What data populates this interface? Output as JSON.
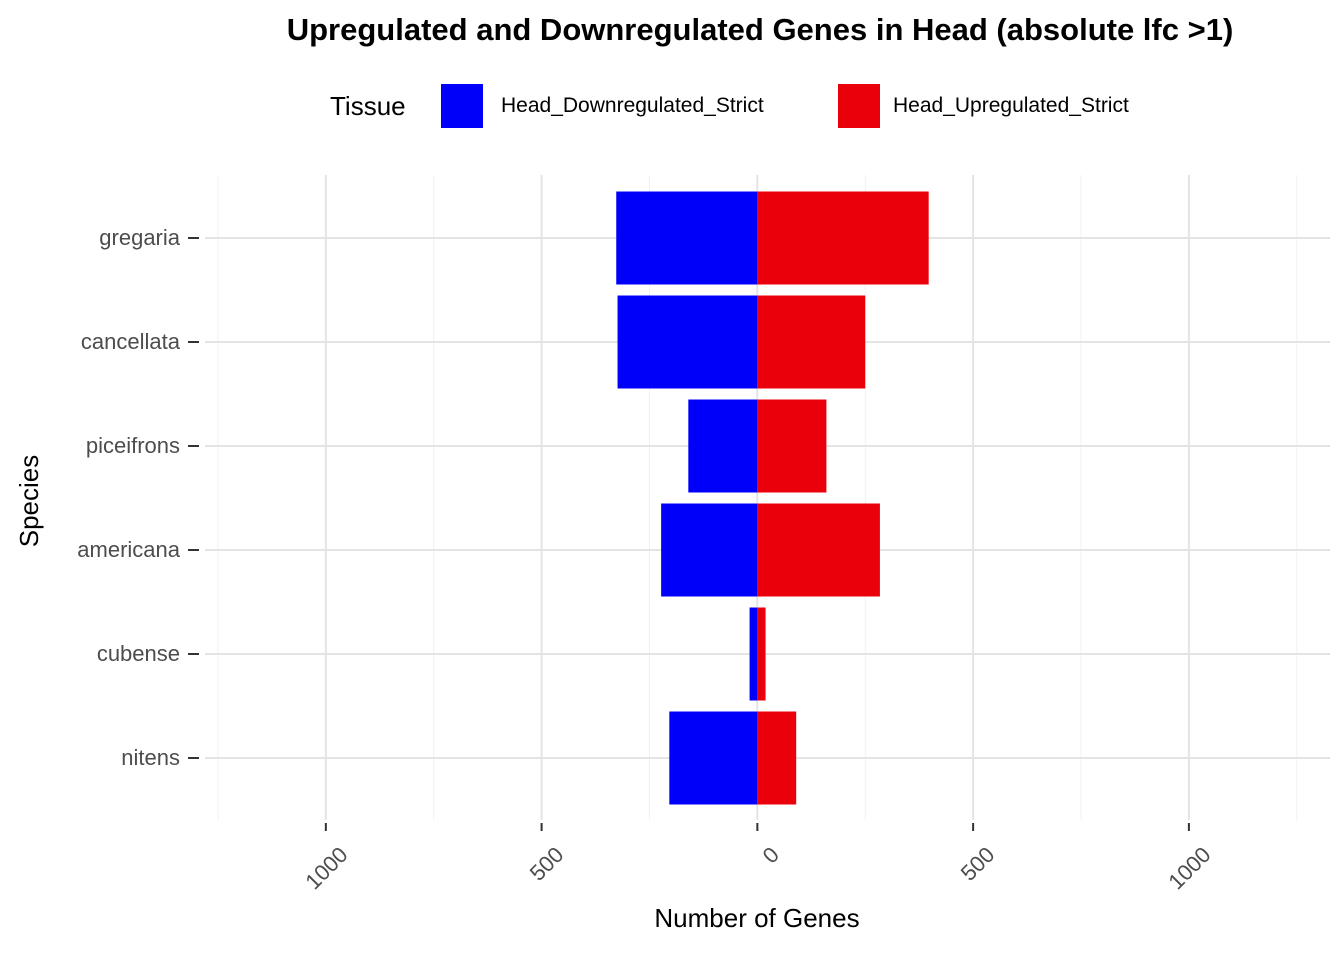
{
  "chart_data": {
    "type": "bar",
    "orientation": "horizontal-diverging",
    "title": "Upregulated and Downregulated Genes in Head (absolute lfc >1)",
    "legend_title": "Tissue",
    "legend_position": "top-center",
    "xlabel": "Number of Genes",
    "ylabel": "Species",
    "categories": [
      "gregaria",
      "cancellata",
      "piceifrons",
      "americana",
      "cubense",
      "nitens"
    ],
    "series": [
      {
        "name": "Head_Downregulated_Strict",
        "direction": "negative",
        "color": "#0000FA",
        "values": [
          327,
          324,
          160,
          223,
          18,
          204
        ]
      },
      {
        "name": "Head_Upregulated_Strict",
        "direction": "positive",
        "color": "#E9000B",
        "values": [
          397,
          250,
          160,
          284,
          19,
          90
        ]
      }
    ],
    "xlim": [
      -1280,
      1327
    ],
    "xtick_values": [
      -1000,
      -500,
      0,
      500,
      1000
    ],
    "xtick_labels": [
      "1000",
      "500",
      "0",
      "500",
      "1000"
    ],
    "xminor_values": [
      -1250,
      -750,
      -250,
      250,
      750,
      1250
    ],
    "grid": "major+minor, no panel border",
    "colors": {
      "grid_major": "#E4E4E4",
      "grid_minor": "#F1F1F1",
      "tick": "#333333",
      "axis_text": "#4d4d4d",
      "background": "#ffffff"
    }
  }
}
